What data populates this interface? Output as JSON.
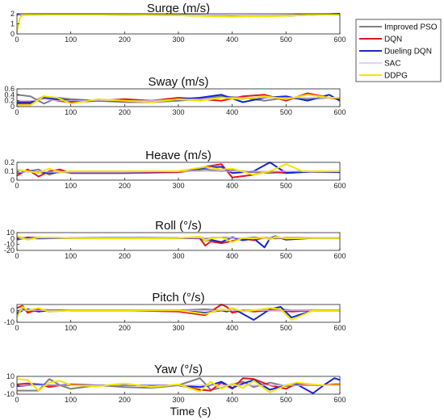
{
  "figure": {
    "xlabel": "Time (s)"
  },
  "legend_title_placement": "top-right",
  "series_colors": {
    "Improved PSO": "#808080",
    "DQN": "#e8141e",
    "Dueling DQN": "#1428d2",
    "SAC": "#d8b4f0",
    "DDPG": "#f2e600"
  },
  "chart_data": [
    {
      "type": "line",
      "title": "Surge (m/s)",
      "xlim": [
        0,
        600
      ],
      "ylim": [
        0,
        2
      ],
      "xticks": [
        0,
        100,
        200,
        300,
        400,
        500,
        600
      ],
      "yticks": [
        0,
        1,
        2
      ],
      "x": [
        0,
        5,
        10,
        30,
        100,
        200,
        300,
        400,
        500,
        550,
        600
      ],
      "series": [
        {
          "name": "Improved PSO",
          "values": [
            1.9,
            1.9,
            1.95,
            1.95,
            1.95,
            1.95,
            1.9,
            1.8,
            1.85,
            1.9,
            1.95
          ]
        },
        {
          "name": "DQN",
          "values": [
            1.9,
            1.95,
            1.9,
            1.9,
            1.95,
            1.9,
            1.85,
            1.75,
            1.8,
            1.95,
            1.9
          ]
        },
        {
          "name": "Dueling DQN",
          "values": [
            1.9,
            1.9,
            1.9,
            1.95,
            1.95,
            1.9,
            1.9,
            1.8,
            1.8,
            1.9,
            2.0
          ]
        },
        {
          "name": "SAC",
          "values": [
            1.8,
            1.9,
            1.95,
            1.95,
            1.95,
            1.9,
            1.9,
            1.85,
            1.85,
            1.9,
            1.95
          ]
        },
        {
          "name": "DDPG",
          "values": [
            0.2,
            1.5,
            1.9,
            1.9,
            1.9,
            1.9,
            1.85,
            1.7,
            1.8,
            1.9,
            1.9
          ]
        }
      ]
    },
    {
      "type": "line",
      "title": "Sway (m/s)",
      "xlim": [
        0,
        600
      ],
      "ylim": [
        0,
        0.6
      ],
      "xticks": [
        0,
        100,
        200,
        300,
        400,
        500,
        600
      ],
      "yticks": [
        0,
        0.2,
        0.4,
        0.6
      ],
      "x": [
        0,
        25,
        50,
        75,
        100,
        150,
        200,
        250,
        300,
        340,
        380,
        420,
        460,
        500,
        540,
        580,
        600
      ],
      "series": [
        {
          "name": "Improved PSO",
          "values": [
            0.4,
            0.35,
            0.1,
            0.3,
            0.25,
            0.2,
            0.15,
            0.15,
            0.2,
            0.25,
            0.35,
            0.3,
            0.2,
            0.3,
            0.25,
            0.3,
            0.3
          ]
        },
        {
          "name": "DQN",
          "values": [
            0.1,
            0.1,
            0.35,
            0.2,
            0.15,
            0.2,
            0.25,
            0.2,
            0.3,
            0.25,
            0.2,
            0.35,
            0.4,
            0.2,
            0.45,
            0.3,
            0.25
          ]
        },
        {
          "name": "Dueling DQN",
          "values": [
            0.15,
            0.15,
            0.3,
            0.25,
            0.2,
            0.2,
            0.2,
            0.15,
            0.25,
            0.3,
            0.4,
            0.15,
            0.3,
            0.35,
            0.2,
            0.4,
            0.2
          ]
        },
        {
          "name": "SAC",
          "values": [
            0.2,
            0.2,
            0.25,
            0.2,
            0.2,
            0.2,
            0.2,
            0.2,
            0.25,
            0.25,
            0.3,
            0.3,
            0.3,
            0.3,
            0.3,
            0.3,
            0.3
          ]
        },
        {
          "name": "DDPG",
          "values": [
            0.05,
            0.05,
            0.35,
            0.3,
            0.1,
            0.25,
            0.2,
            0.15,
            0.25,
            0.2,
            0.3,
            0.25,
            0.35,
            0.25,
            0.4,
            0.3,
            0.3
          ]
        }
      ]
    },
    {
      "type": "line",
      "title": "Heave (m/s)",
      "xlim": [
        0,
        600
      ],
      "ylim": [
        0,
        0.2
      ],
      "xticks": [
        0,
        100,
        200,
        300,
        400,
        500,
        600
      ],
      "yticks": [
        0,
        0.1,
        0.2
      ],
      "x": [
        0,
        20,
        40,
        60,
        80,
        100,
        200,
        300,
        350,
        380,
        400,
        440,
        470,
        500,
        530,
        560,
        600
      ],
      "series": [
        {
          "name": "Improved PSO",
          "values": [
            0.08,
            0.1,
            0.12,
            0.06,
            0.1,
            0.08,
            0.08,
            0.09,
            0.12,
            0.1,
            0.11,
            0.09,
            0.08,
            0.09,
            0.1,
            0.09,
            0.09
          ]
        },
        {
          "name": "DQN",
          "values": [
            0.05,
            0.12,
            0.04,
            0.1,
            0.12,
            0.08,
            0.08,
            0.09,
            0.15,
            0.18,
            0.03,
            0.06,
            0.1,
            0.08,
            0.09,
            0.1,
            0.09
          ]
        },
        {
          "name": "Dueling DQN",
          "values": [
            0.08,
            0.1,
            0.09,
            0.08,
            0.09,
            0.09,
            0.09,
            0.1,
            0.14,
            0.15,
            0.08,
            0.1,
            0.2,
            0.08,
            0.09,
            0.1,
            0.09
          ]
        },
        {
          "name": "SAC",
          "values": [
            0.09,
            0.09,
            0.1,
            0.09,
            0.09,
            0.09,
            0.09,
            0.1,
            0.1,
            0.1,
            0.1,
            0.1,
            0.1,
            0.1,
            0.1,
            0.1,
            0.1
          ]
        },
        {
          "name": "DDPG",
          "values": [
            0.12,
            0.1,
            0.08,
            0.13,
            0.09,
            0.1,
            0.1,
            0.1,
            0.15,
            0.12,
            0.13,
            0.06,
            0.1,
            0.18,
            0.1,
            0.1,
            0.1
          ]
        }
      ]
    },
    {
      "type": "line",
      "title": "Roll (°/s)",
      "xlim": [
        0,
        600
      ],
      "ylim": [
        -20,
        10
      ],
      "xticks": [
        0,
        100,
        200,
        300,
        400,
        500,
        600
      ],
      "yticks": [
        -20,
        -10,
        0,
        10
      ],
      "x": [
        0,
        20,
        40,
        100,
        200,
        300,
        340,
        350,
        360,
        380,
        400,
        420,
        440,
        460,
        470,
        480,
        500,
        550,
        600
      ],
      "series": [
        {
          "name": "Improved PSO",
          "values": [
            3,
            0,
            2,
            1,
            1,
            1,
            2,
            0,
            1,
            2,
            1,
            0,
            2,
            1,
            1,
            0,
            1,
            1,
            1
          ]
        },
        {
          "name": "DQN",
          "values": [
            -2,
            2,
            1,
            1,
            1,
            1,
            0,
            -12,
            -5,
            -8,
            -4,
            0,
            -3,
            2,
            0,
            1,
            1,
            1,
            1
          ]
        },
        {
          "name": "Dueling DQN",
          "values": [
            0,
            1,
            0,
            1,
            1,
            1,
            1,
            -4,
            -2,
            -6,
            2,
            -3,
            0,
            -15,
            0,
            4,
            -2,
            1,
            1
          ]
        },
        {
          "name": "SAC",
          "values": [
            0,
            0,
            1,
            1,
            1,
            1,
            1,
            1,
            1,
            1,
            1,
            1,
            1,
            1,
            1,
            1,
            1,
            1,
            1
          ]
        },
        {
          "name": "DDPG",
          "values": [
            4,
            -2,
            2,
            1,
            0,
            1,
            3,
            -4,
            0,
            2,
            -6,
            1,
            0,
            2,
            -2,
            3,
            0,
            1,
            1
          ]
        }
      ]
    },
    {
      "type": "line",
      "title": "Pitch (°/s)",
      "xlim": [
        0,
        600
      ],
      "ylim": [
        -10,
        5
      ],
      "xticks": [
        0,
        100,
        200,
        300,
        400,
        500,
        600
      ],
      "yticks": [
        -10,
        0
      ],
      "x": [
        0,
        10,
        20,
        40,
        60,
        100,
        200,
        300,
        350,
        380,
        390,
        400,
        420,
        440,
        470,
        490,
        510,
        550,
        600
      ],
      "series": [
        {
          "name": "Improved PSO",
          "values": [
            -2,
            2,
            -1,
            1,
            -1,
            0,
            0,
            0,
            1,
            0,
            0,
            -1,
            0,
            0,
            0,
            1,
            0,
            0,
            0
          ]
        },
        {
          "name": "DQN",
          "values": [
            2,
            4,
            -2,
            1,
            0,
            0,
            0,
            -1,
            -4,
            5,
            3,
            -2,
            0,
            -1,
            0,
            0,
            -1,
            0,
            0
          ]
        },
        {
          "name": "Dueling DQN",
          "values": [
            -3,
            0,
            1,
            -1,
            0,
            0,
            0,
            0,
            -2,
            0,
            -1,
            2,
            -3,
            -8,
            1,
            3,
            -6,
            0,
            0
          ]
        },
        {
          "name": "SAC",
          "values": [
            0,
            0,
            0,
            0,
            0,
            0,
            0,
            0,
            0,
            0,
            0,
            0,
            0,
            0,
            0,
            0,
            0,
            0,
            0
          ]
        },
        {
          "name": "DDPG",
          "values": [
            -6,
            3,
            0,
            2,
            -1,
            0,
            0,
            0,
            -3,
            1,
            0,
            2,
            -1,
            0,
            2,
            1,
            -8,
            0,
            0
          ]
        }
      ]
    },
    {
      "type": "line",
      "title": "Yaw (°/s)",
      "xlim": [
        0,
        600
      ],
      "ylim": [
        -10,
        10
      ],
      "xticks": [
        0,
        100,
        200,
        300,
        400,
        500,
        600
      ],
      "yticks": [
        -10,
        0,
        10
      ],
      "x": [
        0,
        20,
        40,
        60,
        80,
        100,
        150,
        200,
        250,
        300,
        340,
        360,
        380,
        400,
        420,
        440,
        470,
        500,
        520,
        550,
        570,
        590,
        600
      ],
      "series": [
        {
          "name": "Improved PSO",
          "values": [
            -6,
            -6,
            -6,
            7,
            0,
            -4,
            0,
            -2,
            -3,
            0,
            8,
            -5,
            -3,
            1,
            4,
            -2,
            3,
            -1,
            0,
            0,
            0,
            0,
            0
          ]
        },
        {
          "name": "DQN",
          "values": [
            1,
            2,
            1,
            -2,
            0,
            1,
            0,
            0,
            0,
            0,
            -5,
            -6,
            3,
            -4,
            8,
            7,
            0,
            -4,
            2,
            0,
            0,
            1,
            1
          ]
        },
        {
          "name": "Dueling DQN",
          "values": [
            -1,
            0,
            1,
            0,
            0,
            0,
            0,
            0,
            0,
            0,
            -2,
            0,
            4,
            -3,
            2,
            6,
            -5,
            0,
            1,
            -9,
            0,
            8,
            6
          ]
        },
        {
          "name": "SAC",
          "values": [
            0,
            0,
            0,
            0,
            0,
            0,
            0,
            0,
            0,
            0,
            0,
            0,
            0,
            0,
            0,
            0,
            0,
            0,
            0,
            0,
            0,
            0,
            0
          ]
        },
        {
          "name": "DDPG",
          "values": [
            7,
            6,
            -6,
            3,
            5,
            0,
            -1,
            2,
            -2,
            1,
            -7,
            4,
            -4,
            2,
            -3,
            5,
            -8,
            0,
            3,
            1,
            0,
            0,
            0
          ]
        }
      ]
    }
  ]
}
